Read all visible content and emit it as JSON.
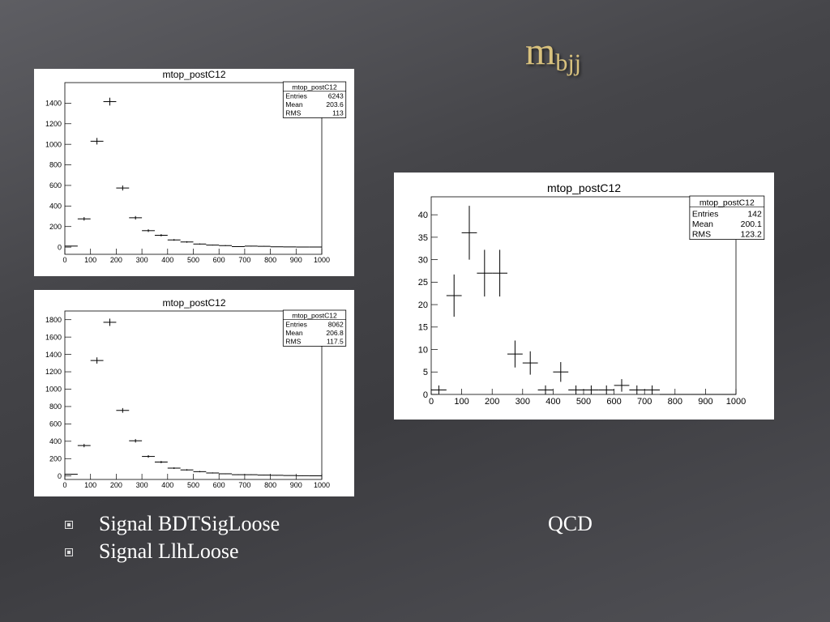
{
  "slide": {
    "title": "m",
    "title_sub": "bjj",
    "bullets": [
      "Signal BDTSigLoose",
      "Signal LlhLoose"
    ],
    "side_label": "QCD"
  },
  "chart_data": [
    {
      "type": "histogram",
      "title": "mtop_postC12",
      "bins": [
        0,
        50,
        100,
        150,
        200,
        250,
        300,
        350,
        400,
        450,
        500,
        550,
        600,
        650,
        700,
        750,
        800,
        850,
        900,
        950,
        1000
      ],
      "values": [
        10,
        275,
        1030,
        1415,
        575,
        285,
        160,
        115,
        70,
        50,
        30,
        20,
        15,
        5,
        10,
        8,
        3,
        2,
        1,
        1
      ],
      "errors": [
        3,
        17,
        32,
        38,
        24,
        17,
        13,
        11,
        8,
        7,
        5,
        4,
        4,
        2,
        3,
        3,
        2,
        1,
        1,
        1
      ],
      "xlim": [
        0,
        1000
      ],
      "ylim": [
        -70,
        1600
      ],
      "xticks": [
        0,
        100,
        200,
        300,
        400,
        500,
        600,
        700,
        800,
        900,
        1000
      ],
      "yticks": [
        0,
        200,
        400,
        600,
        800,
        1000,
        1200,
        1400
      ],
      "color": "#000000",
      "stats": {
        "title": "mtop_postC12",
        "rows": [
          {
            "label": "Entries",
            "value": 6243
          },
          {
            "label": "Mean",
            "value": 203.6
          },
          {
            "label": "RMS",
            "value": 113
          }
        ]
      }
    },
    {
      "type": "histogram",
      "title": "mtop_postC12",
      "bins": [
        0,
        50,
        100,
        150,
        200,
        250,
        300,
        350,
        400,
        450,
        500,
        550,
        600,
        650,
        700,
        750,
        800,
        850,
        900,
        950,
        1000
      ],
      "values": [
        20,
        350,
        1330,
        1770,
        755,
        405,
        225,
        160,
        90,
        70,
        50,
        35,
        25,
        15,
        15,
        10,
        8,
        5,
        3,
        2
      ],
      "errors": [
        4,
        19,
        36,
        42,
        27,
        20,
        15,
        13,
        9,
        8,
        7,
        6,
        5,
        4,
        4,
        3,
        3,
        2,
        2,
        1
      ],
      "xlim": [
        0,
        1000
      ],
      "ylim": [
        -40,
        1900
      ],
      "xticks": [
        0,
        100,
        200,
        300,
        400,
        500,
        600,
        700,
        800,
        900,
        1000
      ],
      "yticks": [
        0,
        200,
        400,
        600,
        800,
        1000,
        1200,
        1400,
        1600,
        1800
      ],
      "color": "#000000",
      "stats": {
        "title": "mtop_postC12",
        "rows": [
          {
            "label": "Entries",
            "value": 8062
          },
          {
            "label": "Mean",
            "value": 206.8
          },
          {
            "label": "RMS",
            "value": 117.5
          }
        ]
      }
    },
    {
      "type": "histogram",
      "title": "mtop_postC12",
      "bins": [
        0,
        50,
        100,
        150,
        200,
        250,
        300,
        350,
        400,
        450,
        500,
        550,
        600,
        650,
        700,
        750,
        800,
        850,
        900,
        950,
        1000
      ],
      "values": [
        1,
        22,
        36,
        27,
        27,
        9,
        7,
        1,
        5,
        1,
        1,
        1,
        2,
        1,
        1,
        0,
        0,
        0,
        0,
        0
      ],
      "errors": [
        1,
        4.7,
        6,
        5.2,
        5.2,
        3,
        2.6,
        1,
        2.2,
        1,
        1,
        1,
        1.4,
        1,
        1,
        0,
        0,
        0,
        0,
        0
      ],
      "xlim": [
        0,
        1000
      ],
      "ylim": [
        0,
        44
      ],
      "xticks": [
        0,
        100,
        200,
        300,
        400,
        500,
        600,
        700,
        800,
        900,
        1000
      ],
      "yticks": [
        0,
        5,
        10,
        15,
        20,
        25,
        30,
        35,
        40
      ],
      "color": "#000000",
      "stats": {
        "title": "mtop_postC12",
        "rows": [
          {
            "label": "Entries",
            "value": 142
          },
          {
            "label": "Mean",
            "value": 200.1
          },
          {
            "label": "RMS",
            "value": 123.2
          }
        ]
      }
    }
  ]
}
